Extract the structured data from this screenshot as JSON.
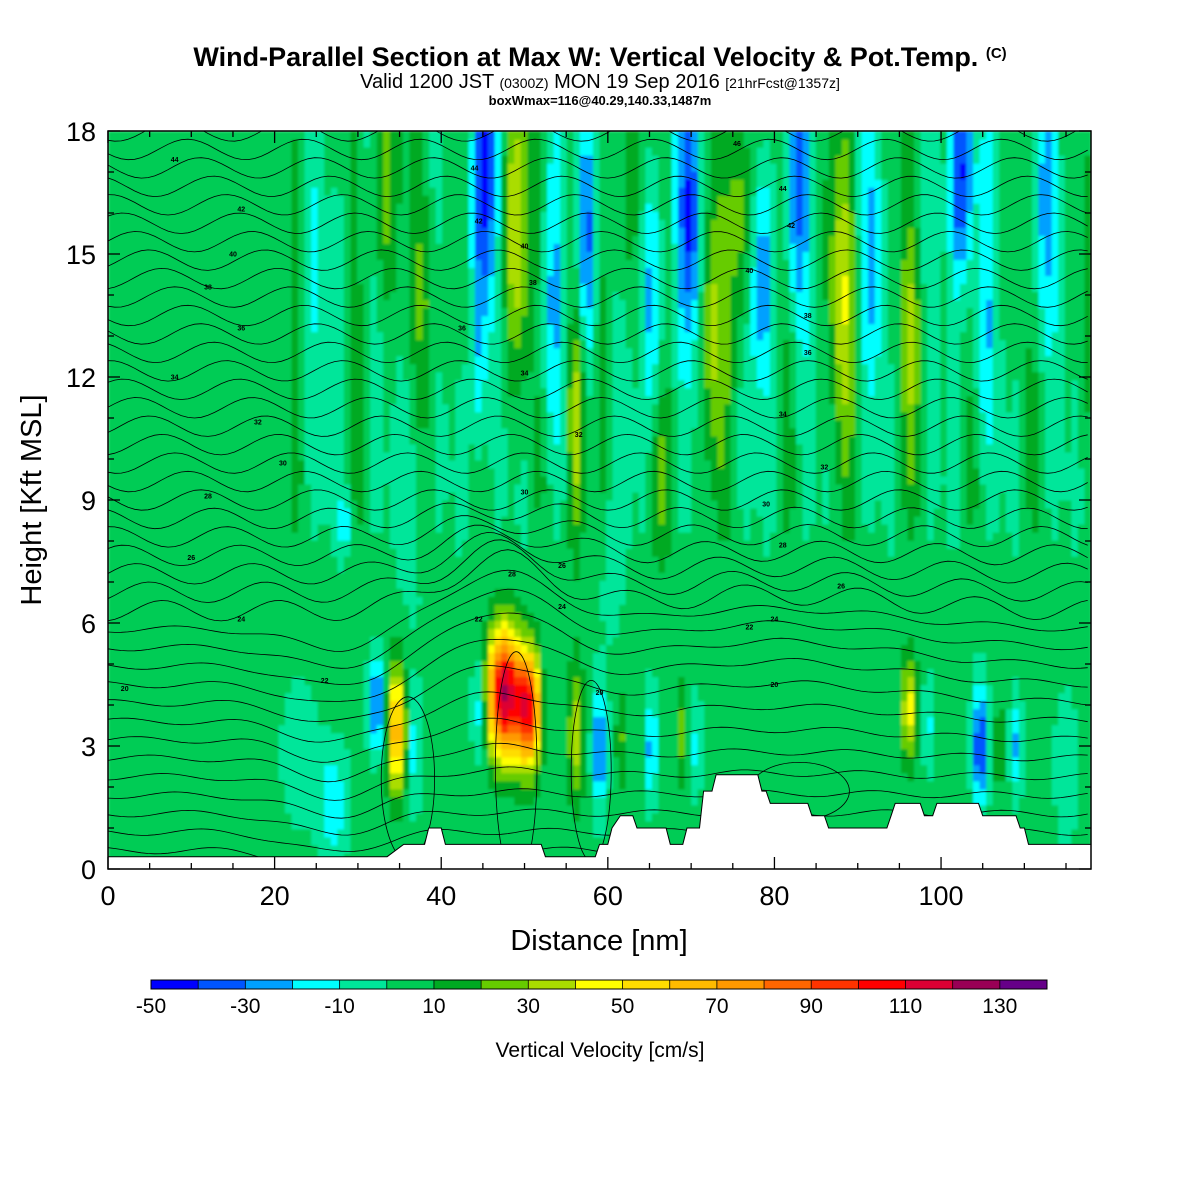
{
  "header": {
    "title": "Wind-Parallel Section at Max W: Vertical Velocity & Pot.Temp.",
    "title_mark": "(C)",
    "subtitle_main": "Valid 1200 JST",
    "subtitle_utc": "(0300Z)",
    "subtitle_date": "MON 19 Sep 2016",
    "subtitle_fcst": "[21hrFcst@1357z]",
    "subtitle2": "boxWmax=116@40.29,140.33,1487m"
  },
  "chart_data": {
    "type": "heatmap",
    "xlabel": "Distance [nm]",
    "ylabel": "Height [Kft MSL]",
    "xlim": [
      0,
      118
    ],
    "ylim": [
      0,
      18
    ],
    "x_ticks": [
      0,
      20,
      40,
      60,
      80,
      100
    ],
    "y_ticks": [
      0,
      3,
      6,
      9,
      12,
      15,
      18
    ],
    "colorbar": {
      "title": "Vertical Velocity [cm/s]",
      "levels": [
        -50,
        -40,
        -30,
        -20,
        -10,
        0,
        10,
        20,
        30,
        40,
        50,
        60,
        70,
        80,
        90,
        100,
        110,
        120,
        130,
        140
      ],
      "tick_labels": [
        -50,
        -30,
        -10,
        10,
        30,
        50,
        70,
        90,
        110,
        130
      ],
      "colors": [
        "#0000ff",
        "#0055ff",
        "#00a0ff",
        "#00ffff",
        "#00e69a",
        "#00cc55",
        "#00aa22",
        "#66cc00",
        "#aadd00",
        "#ffff00",
        "#ffdd00",
        "#ffbb00",
        "#ff9900",
        "#ff6600",
        "#ff3300",
        "#ff0000",
        "#dd0033",
        "#990055",
        "#660088"
      ]
    },
    "updraft_peak": {
      "x_nm": 47.5,
      "height_kft": 4.3,
      "w_cm_s": 116
    },
    "theta_labels_C": [
      20,
      22,
      24,
      26,
      28,
      30,
      32,
      34,
      36,
      38,
      40,
      42,
      44
    ],
    "terrain_kft": [
      [
        0,
        0.3
      ],
      [
        33.5,
        0.3
      ],
      [
        35.5,
        0.6
      ],
      [
        38,
        0.6
      ],
      [
        38.5,
        1.0
      ],
      [
        40,
        1.0
      ],
      [
        40.5,
        0.6
      ],
      [
        52,
        0.6
      ],
      [
        52.5,
        0.3
      ],
      [
        58.5,
        0.3
      ],
      [
        59,
        0.6
      ],
      [
        60,
        0.6
      ],
      [
        60.5,
        1.0
      ],
      [
        61.5,
        1.3
      ],
      [
        63,
        1.3
      ],
      [
        63.5,
        1.0
      ],
      [
        67,
        1.0
      ],
      [
        67.5,
        0.6
      ],
      [
        69,
        0.6
      ],
      [
        69.5,
        1.0
      ],
      [
        71,
        1.0
      ],
      [
        71.5,
        1.9
      ],
      [
        72.5,
        1.9
      ],
      [
        73,
        2.3
      ],
      [
        78,
        2.3
      ],
      [
        78.5,
        1.9
      ],
      [
        79,
        1.9
      ],
      [
        79.5,
        1.6
      ],
      [
        84,
        1.6
      ],
      [
        84.5,
        1.3
      ],
      [
        86,
        1.3
      ],
      [
        86.5,
        1.0
      ],
      [
        93.5,
        1.0
      ],
      [
        94,
        1.3
      ],
      [
        94.5,
        1.6
      ],
      [
        97.5,
        1.6
      ],
      [
        98,
        1.3
      ],
      [
        99,
        1.3
      ],
      [
        99.5,
        1.6
      ],
      [
        104.5,
        1.6
      ],
      [
        105,
        1.3
      ],
      [
        109,
        1.3
      ],
      [
        109.5,
        1.0
      ],
      [
        110,
        1.0
      ],
      [
        110.5,
        0.6
      ],
      [
        118,
        0.6
      ]
    ]
  }
}
